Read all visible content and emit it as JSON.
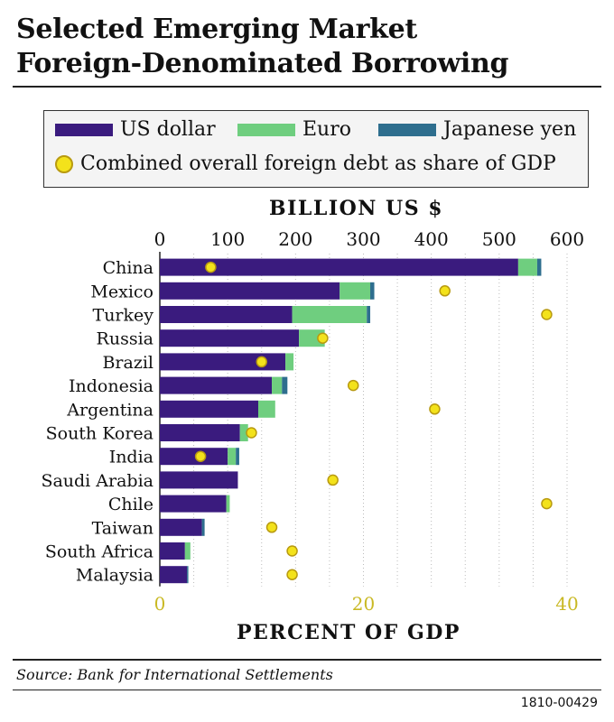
{
  "title_line1": "Selected Emerging Market",
  "title_line2": "Foreign-Denominated Borrowing",
  "legend": {
    "usd": "US dollar",
    "eur": "Euro",
    "jpy": "Japanese yen",
    "dot": "Combined overall foreign debt as share of GDP"
  },
  "colors": {
    "usd": "#3a1b7e",
    "eur": "#6fce7f",
    "jpy": "#2e6e8e",
    "dot": "#f3e21b",
    "bottom_axis": "#c9b924"
  },
  "top_axis_title": "BILLION US $",
  "bottom_axis_title": "PERCENT OF GDP",
  "source": "Source: Bank for International Settlements",
  "code": "1810-00429",
  "chart_data": {
    "type": "bar",
    "orientation": "horizontal",
    "stacked": true,
    "categories": [
      "China",
      "Mexico",
      "Turkey",
      "Russia",
      "Brazil",
      "Indonesia",
      "Argentina",
      "South Korea",
      "India",
      "Saudi Arabia",
      "Chile",
      "Taiwan",
      "South Africa",
      "Malaysia"
    ],
    "series": [
      {
        "name": "US dollar",
        "values": [
          528,
          265,
          195,
          205,
          185,
          165,
          145,
          118,
          100,
          115,
          98,
          62,
          37,
          40
        ]
      },
      {
        "name": "Euro",
        "values": [
          28,
          45,
          110,
          38,
          12,
          15,
          25,
          12,
          12,
          0,
          5,
          0,
          8,
          0
        ]
      },
      {
        "name": "Japanese yen",
        "values": [
          6,
          6,
          5,
          0,
          0,
          8,
          0,
          0,
          5,
          0,
          0,
          4,
          0,
          2
        ]
      }
    ],
    "top_axis": {
      "title": "BILLION US $",
      "range": [
        0,
        600
      ],
      "ticks": [
        0,
        100,
        200,
        300,
        400,
        500,
        600
      ]
    },
    "bottom_axis": {
      "title": "PERCENT OF GDP",
      "range": [
        0,
        40
      ],
      "ticks": [
        0,
        20,
        40
      ]
    },
    "dot_series": {
      "name": "Combined overall foreign debt as share of GDP",
      "values": [
        5,
        28,
        38,
        16,
        10,
        19,
        27,
        9,
        4,
        17,
        38,
        11,
        13,
        13
      ]
    },
    "grid": true
  }
}
